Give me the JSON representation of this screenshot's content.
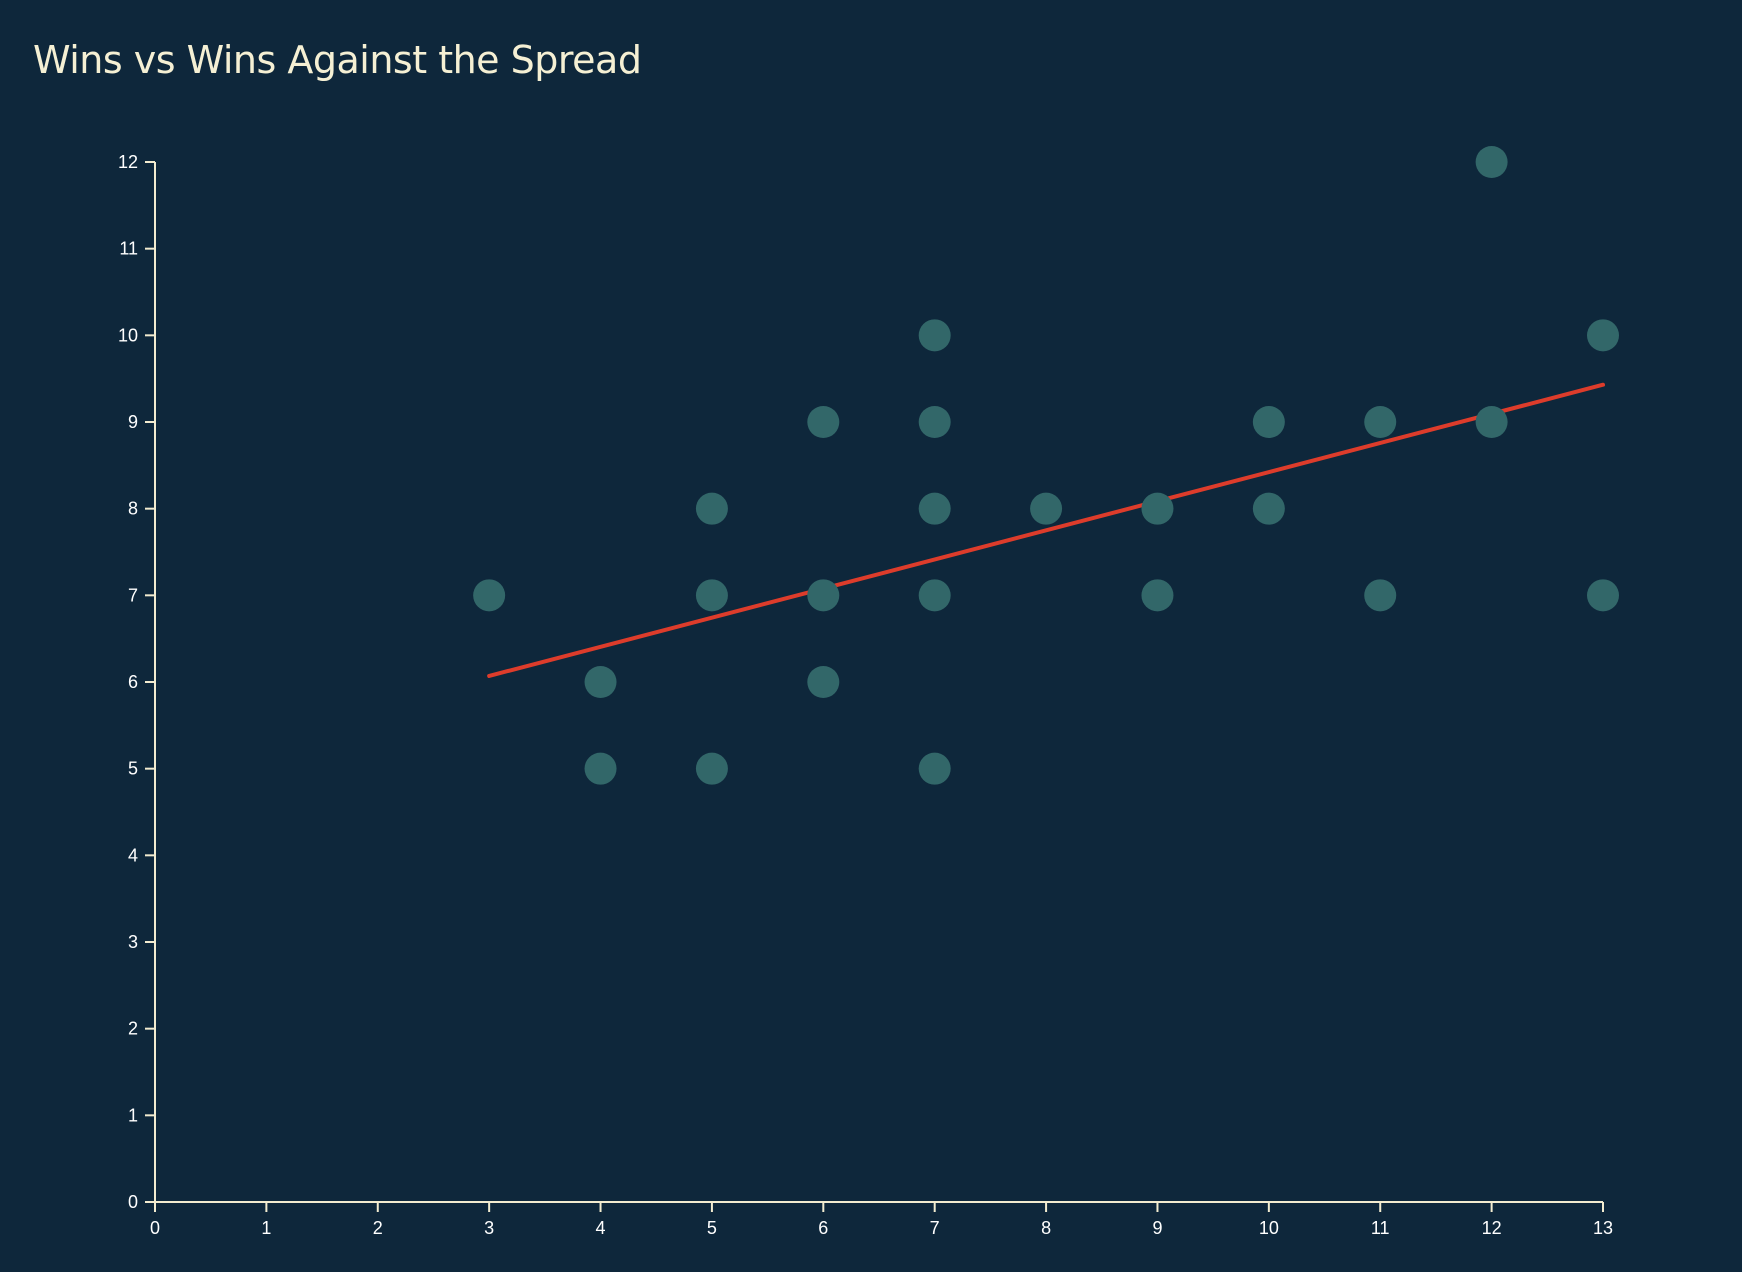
{
  "chart_data": {
    "type": "scatter",
    "title": "Wins vs Wins Against the Spread",
    "xlabel": "",
    "ylabel": "",
    "xlim": [
      0,
      13
    ],
    "ylim": [
      0,
      12
    ],
    "x_ticks": [
      0,
      1,
      2,
      3,
      4,
      5,
      6,
      7,
      8,
      9,
      10,
      11,
      12,
      13
    ],
    "y_ticks": [
      0,
      1,
      2,
      3,
      4,
      5,
      6,
      7,
      8,
      9,
      10,
      11,
      12
    ],
    "grid": false,
    "legend": "none",
    "points": [
      {
        "x": 3,
        "y": 7
      },
      {
        "x": 4,
        "y": 6
      },
      {
        "x": 4,
        "y": 5
      },
      {
        "x": 5,
        "y": 8
      },
      {
        "x": 5,
        "y": 7
      },
      {
        "x": 5,
        "y": 5
      },
      {
        "x": 6,
        "y": 9
      },
      {
        "x": 6,
        "y": 7
      },
      {
        "x": 6,
        "y": 6
      },
      {
        "x": 7,
        "y": 10
      },
      {
        "x": 7,
        "y": 9
      },
      {
        "x": 7,
        "y": 8
      },
      {
        "x": 7,
        "y": 7
      },
      {
        "x": 7,
        "y": 5
      },
      {
        "x": 8,
        "y": 8
      },
      {
        "x": 9,
        "y": 8
      },
      {
        "x": 9,
        "y": 7
      },
      {
        "x": 10,
        "y": 9
      },
      {
        "x": 10,
        "y": 8
      },
      {
        "x": 11,
        "y": 9
      },
      {
        "x": 11,
        "y": 7
      },
      {
        "x": 12,
        "y": 12
      },
      {
        "x": 12,
        "y": 9
      },
      {
        "x": 13,
        "y": 10
      },
      {
        "x": 13,
        "y": 7
      }
    ],
    "trend_line": {
      "type": "linear-regression",
      "start": {
        "x": 3,
        "y": 6.07
      },
      "end": {
        "x": 13,
        "y": 9.43
      }
    },
    "colors": {
      "background": "#0e273b",
      "title": "#f5f0d4",
      "axis": "#f3ecd0",
      "tick_label": "#ffffff",
      "point": "#326769",
      "trend_line": "#dd3c2b"
    }
  }
}
